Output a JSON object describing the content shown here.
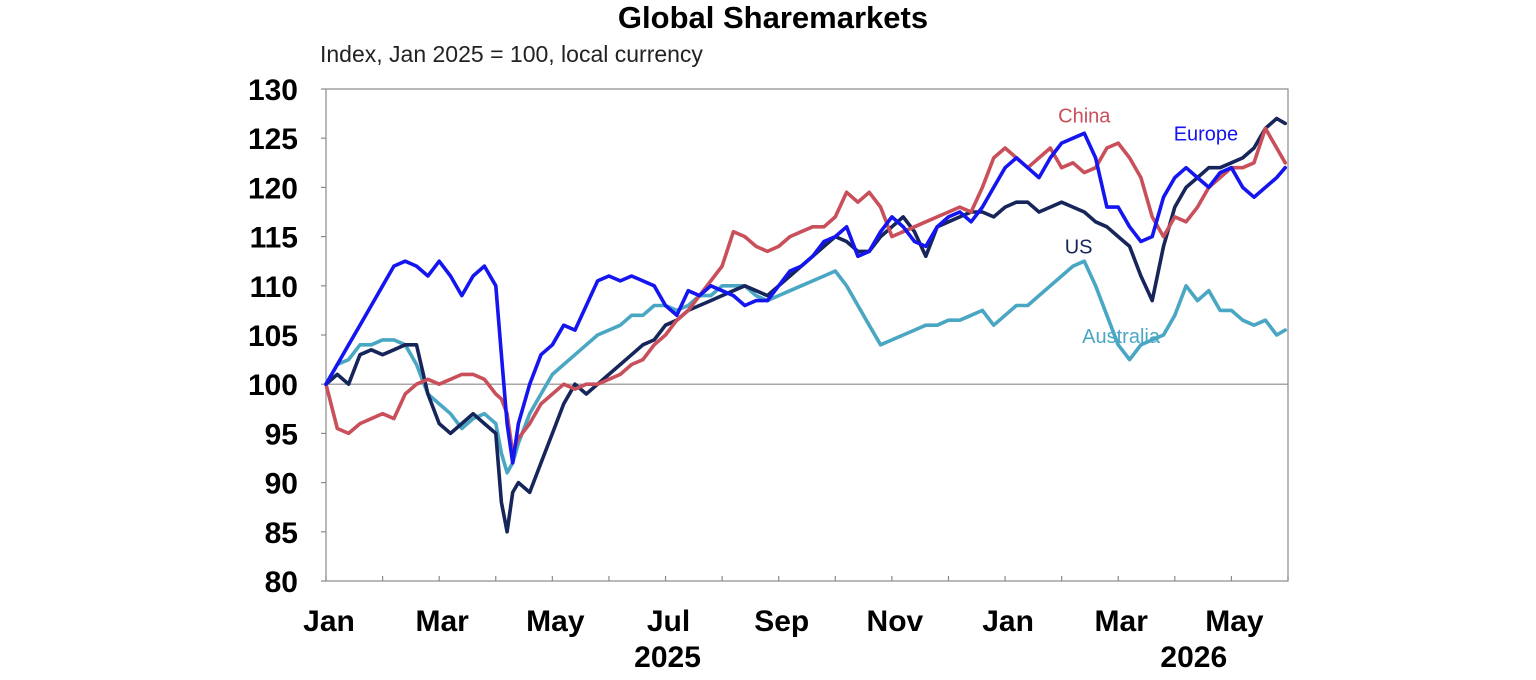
{
  "chart_data": {
    "type": "line",
    "title": "Global Sharemarkets",
    "subtitle": "Index, Jan 2025 = 100, local currency",
    "ylim": [
      80,
      130
    ],
    "yticks": [
      80,
      85,
      90,
      95,
      100,
      105,
      110,
      115,
      120,
      125,
      130
    ],
    "reference_line": 100,
    "x_unit": "months since start of Jan 2025",
    "xlim": [
      0,
      17
    ],
    "x_tick_labels": [
      {
        "x": 0,
        "label": "Jan"
      },
      {
        "x": 2,
        "label": "Mar"
      },
      {
        "x": 4,
        "label": "May"
      },
      {
        "x": 6,
        "label": "Jul"
      },
      {
        "x": 8,
        "label": "Sep"
      },
      {
        "x": 10,
        "label": "Nov"
      },
      {
        "x": 12,
        "label": "Jan"
      },
      {
        "x": 14,
        "label": "Mar"
      },
      {
        "x": 16,
        "label": "May"
      }
    ],
    "year_labels": [
      {
        "x": 6,
        "label": "2025"
      },
      {
        "x": 15.3,
        "label": "2026"
      }
    ],
    "grid": false,
    "series": [
      {
        "name": "Australia",
        "color": "#4aa7c4",
        "label_pos": [
          14.05,
          104.9
        ],
        "x": [
          0,
          0.2,
          0.4,
          0.6,
          0.8,
          1.0,
          1.2,
          1.4,
          1.6,
          1.8,
          2.0,
          2.2,
          2.4,
          2.6,
          2.8,
          3.0,
          3.1,
          3.2,
          3.3,
          3.4,
          3.6,
          3.8,
          4.0,
          4.2,
          4.4,
          4.6,
          4.8,
          5.0,
          5.2,
          5.4,
          5.6,
          5.8,
          6.0,
          6.2,
          6.4,
          6.6,
          6.8,
          7.0,
          7.2,
          7.4,
          7.6,
          7.8,
          8.0,
          8.2,
          8.4,
          8.6,
          8.8,
          9.0,
          9.2,
          9.4,
          9.6,
          9.8,
          10.0,
          10.2,
          10.4,
          10.6,
          10.8,
          11.0,
          11.2,
          11.4,
          11.6,
          11.8,
          12.0,
          12.2,
          12.4,
          12.6,
          12.8,
          13.0,
          13.2,
          13.4,
          13.6,
          13.8,
          14.0,
          14.2,
          14.4,
          14.6,
          14.8,
          15.0,
          15.2,
          15.4,
          15.6,
          15.8,
          16.0,
          16.2,
          16.4,
          16.6,
          16.8,
          16.95
        ],
        "y": [
          100,
          102,
          102.5,
          104,
          104,
          104.5,
          104.5,
          104,
          102,
          99,
          98,
          97,
          95.5,
          96.5,
          97,
          96,
          93,
          91,
          92,
          94,
          97,
          99,
          101,
          102,
          103,
          104,
          105,
          105.5,
          106,
          107,
          107,
          108,
          108,
          107.5,
          108,
          109,
          109,
          110,
          110,
          110,
          109,
          108.5,
          109,
          109.5,
          110,
          110.5,
          111,
          111.5,
          110,
          108,
          106,
          104,
          104.5,
          105,
          105.5,
          106,
          106,
          106.5,
          106.5,
          107,
          107.5,
          106,
          107,
          108,
          108,
          109,
          110,
          111,
          112,
          112.5,
          110,
          107,
          104,
          102.5,
          104,
          104.5,
          105,
          107,
          110,
          108.5,
          109.5,
          107.5,
          107.5,
          106.5,
          106,
          106.5,
          105,
          105.5
        ]
      },
      {
        "name": "US",
        "color": "#16255a",
        "label_pos": [
          13.3,
          114.0
        ],
        "x": [
          0,
          0.2,
          0.4,
          0.6,
          0.8,
          1.0,
          1.2,
          1.4,
          1.6,
          1.8,
          2.0,
          2.2,
          2.4,
          2.6,
          2.8,
          3.0,
          3.1,
          3.2,
          3.3,
          3.4,
          3.6,
          3.8,
          4.0,
          4.2,
          4.4,
          4.6,
          4.8,
          5.0,
          5.2,
          5.4,
          5.6,
          5.8,
          6.0,
          6.2,
          6.4,
          6.6,
          6.8,
          7.0,
          7.2,
          7.4,
          7.6,
          7.8,
          8.0,
          8.2,
          8.4,
          8.6,
          8.8,
          9.0,
          9.2,
          9.4,
          9.6,
          9.8,
          10.0,
          10.2,
          10.4,
          10.6,
          10.8,
          11.0,
          11.2,
          11.4,
          11.6,
          11.8,
          12.0,
          12.2,
          12.4,
          12.6,
          12.8,
          13.0,
          13.2,
          13.4,
          13.6,
          13.8,
          14.0,
          14.2,
          14.4,
          14.6,
          14.8,
          15.0,
          15.2,
          15.4,
          15.6,
          15.8,
          16.0,
          16.2,
          16.4,
          16.6,
          16.8,
          16.95
        ],
        "y": [
          100,
          101,
          100,
          103,
          103.5,
          103,
          103.5,
          104,
          104,
          99,
          96,
          95,
          96,
          97,
          96,
          95,
          88,
          85,
          89,
          90,
          89,
          92,
          95,
          98,
          100,
          99,
          100,
          101,
          102,
          103,
          104,
          104.5,
          106,
          106.5,
          107.5,
          108,
          108.5,
          109,
          109.5,
          110,
          109.5,
          109,
          110,
          111,
          112,
          113,
          114,
          115,
          114.5,
          113.5,
          113.5,
          115,
          116,
          117,
          115.5,
          113,
          116,
          116.5,
          117,
          117.5,
          117.5,
          117,
          118,
          118.5,
          118.5,
          117.5,
          118,
          118.5,
          118,
          117.5,
          116.5,
          116,
          115,
          114,
          111,
          108.5,
          114,
          118,
          120,
          121,
          122,
          122,
          122.5,
          123,
          124,
          126,
          127,
          126.5
        ]
      },
      {
        "name": "China",
        "color": "#c9505a",
        "label_pos": [
          13.4,
          127.3
        ],
        "x": [
          0,
          0.2,
          0.4,
          0.6,
          0.8,
          1.0,
          1.2,
          1.4,
          1.6,
          1.8,
          2.0,
          2.2,
          2.4,
          2.6,
          2.8,
          3.0,
          3.1,
          3.2,
          3.3,
          3.4,
          3.6,
          3.8,
          4.0,
          4.2,
          4.4,
          4.6,
          4.8,
          5.0,
          5.2,
          5.4,
          5.6,
          5.8,
          6.0,
          6.2,
          6.4,
          6.6,
          6.8,
          7.0,
          7.2,
          7.4,
          7.6,
          7.8,
          8.0,
          8.2,
          8.4,
          8.6,
          8.8,
          9.0,
          9.2,
          9.4,
          9.6,
          9.8,
          10.0,
          10.2,
          10.4,
          10.6,
          10.8,
          11.0,
          11.2,
          11.4,
          11.6,
          11.8,
          12.0,
          12.2,
          12.4,
          12.6,
          12.8,
          13.0,
          13.2,
          13.4,
          13.6,
          13.8,
          14.0,
          14.2,
          14.4,
          14.6,
          14.8,
          15.0,
          15.2,
          15.4,
          15.6,
          15.8,
          16.0,
          16.2,
          16.4,
          16.6,
          16.8,
          16.95
        ],
        "y": [
          100,
          95.5,
          95,
          96,
          96.5,
          97,
          96.5,
          99,
          100,
          100.5,
          100,
          100.5,
          101,
          101,
          100.5,
          99,
          98.5,
          97,
          93,
          94.5,
          96,
          98,
          99,
          100,
          99.5,
          100,
          100,
          100.5,
          101,
          102,
          102.5,
          104,
          105,
          106.5,
          107.5,
          109,
          110.5,
          112,
          115.5,
          115,
          114,
          113.5,
          114,
          115,
          115.5,
          116,
          116,
          117,
          119.5,
          118.5,
          119.5,
          118,
          115,
          115.5,
          116,
          116.5,
          117,
          117.5,
          118,
          117.5,
          120,
          123,
          124,
          123,
          122,
          123,
          124,
          122,
          122.5,
          121.5,
          122,
          124,
          124.5,
          123,
          121,
          117,
          115,
          117,
          116.5,
          118,
          120,
          121,
          122,
          122,
          122.5,
          126,
          124,
          122.5
        ]
      },
      {
        "name": "Europe",
        "color": "#1515f0",
        "label_pos": [
          15.55,
          125.5
        ],
        "x": [
          0,
          0.2,
          0.4,
          0.6,
          0.8,
          1.0,
          1.2,
          1.4,
          1.6,
          1.8,
          2.0,
          2.2,
          2.4,
          2.6,
          2.8,
          3.0,
          3.1,
          3.2,
          3.3,
          3.4,
          3.6,
          3.8,
          4.0,
          4.2,
          4.4,
          4.6,
          4.8,
          5.0,
          5.2,
          5.4,
          5.6,
          5.8,
          6.0,
          6.2,
          6.4,
          6.6,
          6.8,
          7.0,
          7.2,
          7.4,
          7.6,
          7.8,
          8.0,
          8.2,
          8.4,
          8.6,
          8.8,
          9.0,
          9.2,
          9.4,
          9.6,
          9.8,
          10.0,
          10.2,
          10.4,
          10.6,
          10.8,
          11.0,
          11.2,
          11.4,
          11.6,
          11.8,
          12.0,
          12.2,
          12.4,
          12.6,
          12.8,
          13.0,
          13.2,
          13.4,
          13.6,
          13.8,
          14.0,
          14.2,
          14.4,
          14.6,
          14.8,
          15.0,
          15.2,
          15.4,
          15.6,
          15.8,
          16.0,
          16.2,
          16.4,
          16.6,
          16.8,
          16.95
        ],
        "y": [
          100,
          102,
          104,
          106,
          108,
          110,
          112,
          112.5,
          112,
          111,
          112.5,
          111,
          109,
          111,
          112,
          110,
          103,
          96,
          92,
          96,
          100,
          103,
          104,
          106,
          105.5,
          108,
          110.5,
          111,
          110.5,
          111,
          110.5,
          110,
          108,
          107,
          109.5,
          109,
          110,
          109.5,
          109,
          108,
          108.5,
          108.5,
          110,
          111.5,
          112,
          113,
          114.5,
          115,
          116,
          113,
          113.5,
          115.5,
          117,
          116,
          114.5,
          114,
          116,
          117,
          117.5,
          116.5,
          118,
          120,
          122,
          123,
          122,
          121,
          123,
          124.5,
          125,
          125.5,
          123,
          118,
          118,
          116,
          114.5,
          115,
          119,
          121,
          122,
          121,
          120,
          121.5,
          122,
          120,
          119,
          120,
          121,
          122
        ]
      }
    ]
  }
}
